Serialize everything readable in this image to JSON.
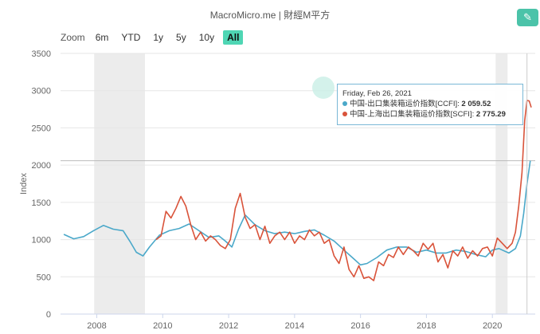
{
  "header": {
    "title": "MacroMicro.me | 財經M平方"
  },
  "zoom": {
    "label": "Zoom",
    "buttons": [
      {
        "label": "6m",
        "active": false
      },
      {
        "label": "YTD",
        "active": false
      },
      {
        "label": "1y",
        "active": false
      },
      {
        "label": "5y",
        "active": false
      },
      {
        "label": "10y",
        "active": false
      },
      {
        "label": "All",
        "active": true
      }
    ]
  },
  "tooltip": {
    "date": "Friday, Feb 26, 2021",
    "rows": [
      {
        "name": "中国-出口集装箱运价指数[CCFI]",
        "value": "2 059.52",
        "color": "#4aa8c9"
      },
      {
        "name": "中国-上海出口集装箱运价指数[SCFI]",
        "value": "2 775.29",
        "color": "#d9533a"
      }
    ]
  },
  "icons": {
    "edit": "pencil-icon",
    "watermark": "macromicro-logo-icon"
  },
  "chart_data": {
    "type": "line",
    "ylabel": "Index",
    "xlabel": "",
    "ylim": [
      0,
      3500
    ],
    "yticks": [
      0,
      500,
      1000,
      1500,
      2000,
      2500,
      3000,
      3500
    ],
    "xlim": [
      2006.9,
      2021.3
    ],
    "xticks": [
      2008,
      2010,
      2012,
      2014,
      2016,
      2018,
      2020
    ],
    "recession_bands": [
      [
        2007.92,
        2009.46
      ],
      [
        2020.1,
        2020.46
      ]
    ],
    "series": [
      {
        "name": "中国-出口集装箱运价指数[CCFI]",
        "color": "#4aa8c9",
        "x": [
          2007.0,
          2007.3,
          2007.6,
          2007.9,
          2008.2,
          2008.5,
          2008.8,
          2009.0,
          2009.2,
          2009.4,
          2009.6,
          2009.9,
          2010.2,
          2010.5,
          2010.8,
          2011.1,
          2011.4,
          2011.7,
          2011.9,
          2012.1,
          2012.3,
          2012.5,
          2012.8,
          2013.1,
          2013.4,
          2013.7,
          2014.0,
          2014.3,
          2014.6,
          2014.9,
          2015.2,
          2015.5,
          2015.8,
          2016.0,
          2016.2,
          2016.5,
          2016.8,
          2017.1,
          2017.4,
          2017.7,
          2018.0,
          2018.3,
          2018.6,
          2018.9,
          2019.2,
          2019.5,
          2019.8,
          2020.0,
          2020.2,
          2020.5,
          2020.7,
          2020.85,
          2020.95,
          2021.05,
          2021.15
        ],
        "values": [
          1070,
          1010,
          1040,
          1120,
          1190,
          1140,
          1120,
          980,
          830,
          780,
          900,
          1060,
          1120,
          1150,
          1210,
          1120,
          1030,
          1050,
          980,
          900,
          1140,
          1330,
          1200,
          1120,
          1080,
          1100,
          1080,
          1110,
          1130,
          1060,
          980,
          860,
          740,
          660,
          680,
          760,
          860,
          900,
          900,
          830,
          860,
          820,
          820,
          860,
          840,
          800,
          770,
          860,
          880,
          820,
          880,
          1050,
          1350,
          1750,
          2059.52
        ]
      },
      {
        "name": "中国-上海出口集装箱运价指数[SCFI]",
        "color": "#d9533a",
        "x": [
          2009.8,
          2009.95,
          2010.1,
          2010.25,
          2010.4,
          2010.55,
          2010.7,
          2010.85,
          2011.0,
          2011.15,
          2011.3,
          2011.45,
          2011.6,
          2011.75,
          2011.9,
          2012.05,
          2012.2,
          2012.35,
          2012.5,
          2012.65,
          2012.8,
          2012.95,
          2013.1,
          2013.25,
          2013.4,
          2013.55,
          2013.7,
          2013.85,
          2014.0,
          2014.15,
          2014.3,
          2014.45,
          2014.6,
          2014.75,
          2014.9,
          2015.05,
          2015.2,
          2015.35,
          2015.5,
          2015.65,
          2015.8,
          2015.95,
          2016.1,
          2016.25,
          2016.4,
          2016.55,
          2016.7,
          2016.85,
          2017.0,
          2017.15,
          2017.3,
          2017.45,
          2017.6,
          2017.75,
          2017.9,
          2018.05,
          2018.2,
          2018.35,
          2018.5,
          2018.65,
          2018.8,
          2018.95,
          2019.1,
          2019.25,
          2019.4,
          2019.55,
          2019.7,
          2019.85,
          2020.0,
          2020.15,
          2020.3,
          2020.45,
          2020.6,
          2020.7,
          2020.8,
          2020.9,
          2020.98,
          2021.05,
          2021.12,
          2021.18
        ],
        "values": [
          1000,
          1050,
          1380,
          1290,
          1420,
          1580,
          1450,
          1200,
          1000,
          1100,
          980,
          1050,
          1000,
          920,
          880,
          1000,
          1420,
          1620,
          1300,
          1150,
          1200,
          1000,
          1180,
          950,
          1050,
          1100,
          1000,
          1100,
          950,
          1050,
          1000,
          1130,
          1050,
          1100,
          950,
          1000,
          780,
          680,
          900,
          600,
          500,
          650,
          480,
          500,
          450,
          700,
          650,
          800,
          760,
          900,
          800,
          900,
          850,
          780,
          950,
          870,
          950,
          700,
          800,
          620,
          850,
          780,
          900,
          750,
          850,
          780,
          880,
          900,
          780,
          1020,
          950,
          880,
          950,
          1100,
          1450,
          1900,
          2600,
          2870,
          2860,
          2775.29
        ]
      }
    ]
  }
}
